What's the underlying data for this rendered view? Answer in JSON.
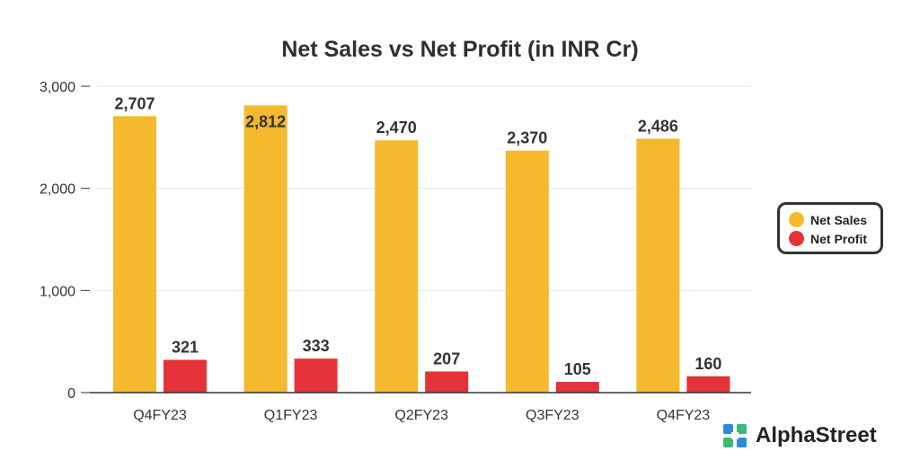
{
  "chart_data": {
    "type": "bar",
    "title": "Net Sales vs Net Profit (in INR Cr)",
    "categories": [
      "Q4FY23",
      "Q1FY23",
      "Q2FY23",
      "Q3FY23",
      "Q4FY23"
    ],
    "series": [
      {
        "name": "Net Sales",
        "color": "#f5b92d",
        "values": [
          2707,
          2812,
          2470,
          2370,
          2486
        ],
        "labels": [
          "2,707",
          "2,812",
          "2,470",
          "2,370",
          "2,486"
        ]
      },
      {
        "name": "Net Profit",
        "color": "#e53238",
        "values": [
          321,
          333,
          207,
          105,
          160
        ],
        "labels": [
          "321",
          "333",
          "207",
          "105",
          "160"
        ]
      }
    ],
    "ylim": [
      0,
      3000
    ],
    "yticks": [
      0,
      1000,
      2000,
      3000
    ],
    "ytick_labels": [
      "0",
      "1,000",
      "2,000",
      "3,000"
    ],
    "grid": true,
    "legend_position": "right"
  },
  "brand": {
    "name": "AlphaStreet",
    "logo_icon": "alphastreet-logo-icon",
    "logo_colors": [
      "#2d8cd6",
      "#3cb878"
    ]
  }
}
